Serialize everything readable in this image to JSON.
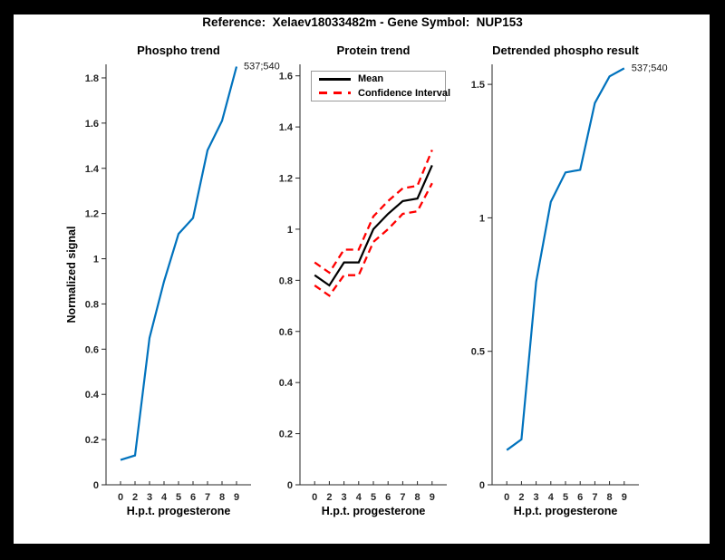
{
  "figure": {
    "title": "Reference:  Xelaev18033482m - Gene Symbol:  NUP153",
    "background_color": "#ffffff",
    "frame_color": "#000000",
    "axis_color": "#262626",
    "accent_blue": "#0072BD",
    "accent_red": "#ff0000"
  },
  "chart_data": [
    {
      "type": "line",
      "title": "Phospho trend",
      "xlabel": "H.p.t. progesterone",
      "ylabel": "Normalized signal",
      "categories": [
        "0",
        "2",
        "3",
        "4",
        "5",
        "6",
        "7",
        "8",
        "9"
      ],
      "series": [
        {
          "name": "537;540",
          "color": "#0072BD",
          "style": "solid",
          "values": [
            0.11,
            0.13,
            0.65,
            0.9,
            1.11,
            1.18,
            1.48,
            1.61,
            1.85
          ]
        }
      ],
      "annotation": "537;540",
      "ylim": [
        0,
        1.86
      ],
      "yticks": [
        0,
        0.2,
        0.4,
        0.6,
        0.8,
        1.0,
        1.2,
        1.4,
        1.6,
        1.8
      ],
      "ytick_labels": [
        "0",
        "0.2",
        "0.4",
        "0.6",
        "0.8",
        "1",
        "1.2",
        "1.4",
        "1.6",
        "1.8"
      ],
      "grid": false
    },
    {
      "type": "line",
      "title": "Protein trend",
      "xlabel": "H.p.t. progesterone",
      "ylabel": "",
      "categories": [
        "0",
        "2",
        "3",
        "4",
        "5",
        "6",
        "7",
        "8",
        "9"
      ],
      "series": [
        {
          "name": "Mean",
          "color": "#000000",
          "style": "solid",
          "values": [
            0.82,
            0.78,
            0.87,
            0.87,
            1.0,
            1.06,
            1.11,
            1.12,
            1.25
          ]
        },
        {
          "name": "Confidence Interval upper",
          "color": "#ff0000",
          "style": "dashed",
          "values": [
            0.87,
            0.83,
            0.92,
            0.92,
            1.05,
            1.11,
            1.16,
            1.17,
            1.31
          ]
        },
        {
          "name": "Confidence Interval lower",
          "color": "#ff0000",
          "style": "dashed",
          "values": [
            0.78,
            0.74,
            0.82,
            0.82,
            0.95,
            1.0,
            1.06,
            1.07,
            1.18
          ]
        }
      ],
      "annotation": "",
      "ylim": [
        0,
        1.645
      ],
      "yticks": [
        0,
        0.2,
        0.4,
        0.6,
        0.8,
        1.0,
        1.2,
        1.4,
        1.6
      ],
      "ytick_labels": [
        "0",
        "0.2",
        "0.4",
        "0.6",
        "0.8",
        "1",
        "1.2",
        "1.4",
        "1.6"
      ],
      "legend": [
        {
          "label": "Mean",
          "color": "#000000",
          "style": "solid"
        },
        {
          "label": "Confidence Interval",
          "color": "#ff0000",
          "style": "dashed"
        }
      ],
      "legend_position": "top-left",
      "grid": false
    },
    {
      "type": "line",
      "title": "Detrended phospho result",
      "xlabel": "H.p.t. progesterone",
      "ylabel": "",
      "categories": [
        "0",
        "2",
        "3",
        "4",
        "5",
        "6",
        "7",
        "8",
        "9"
      ],
      "series": [
        {
          "name": "537;540",
          "color": "#0072BD",
          "style": "solid",
          "values": [
            0.13,
            0.17,
            0.76,
            1.06,
            1.17,
            1.18,
            1.43,
            1.53,
            1.56
          ]
        }
      ],
      "annotation": "537;540",
      "ylim": [
        0,
        1.575
      ],
      "yticks": [
        0,
        0.5,
        1.0,
        1.5
      ],
      "ytick_labels": [
        "0",
        "0.5",
        "1",
        "1.5"
      ],
      "grid": false
    }
  ]
}
